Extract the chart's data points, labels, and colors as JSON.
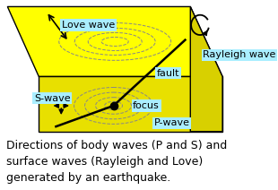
{
  "bg_color": "#ffffff",
  "box_fill_top": "#ffff00",
  "box_fill_front": "#e8e000",
  "box_fill_right": "#d8d000",
  "box_stroke": "#000000",
  "dashed_color": "#888888",
  "label_bg": "#aaeeff",
  "arrow_color": "#000000",
  "text_color": "#000000",
  "caption_color": "#000000",
  "love_wave_label": "Love wave",
  "rayleigh_wave_label": "Rayleigh wave",
  "s_wave_label": "S-wave",
  "p_wave_label": "P-wave",
  "focus_label": "focus",
  "fault_label": "fault",
  "caption": "Directions of body waves (P and S) and\nsurface waves (Rayleigh and Love)\ngenerated by an earthquake.",
  "caption_fontsize": 9,
  "label_fontsize": 8
}
